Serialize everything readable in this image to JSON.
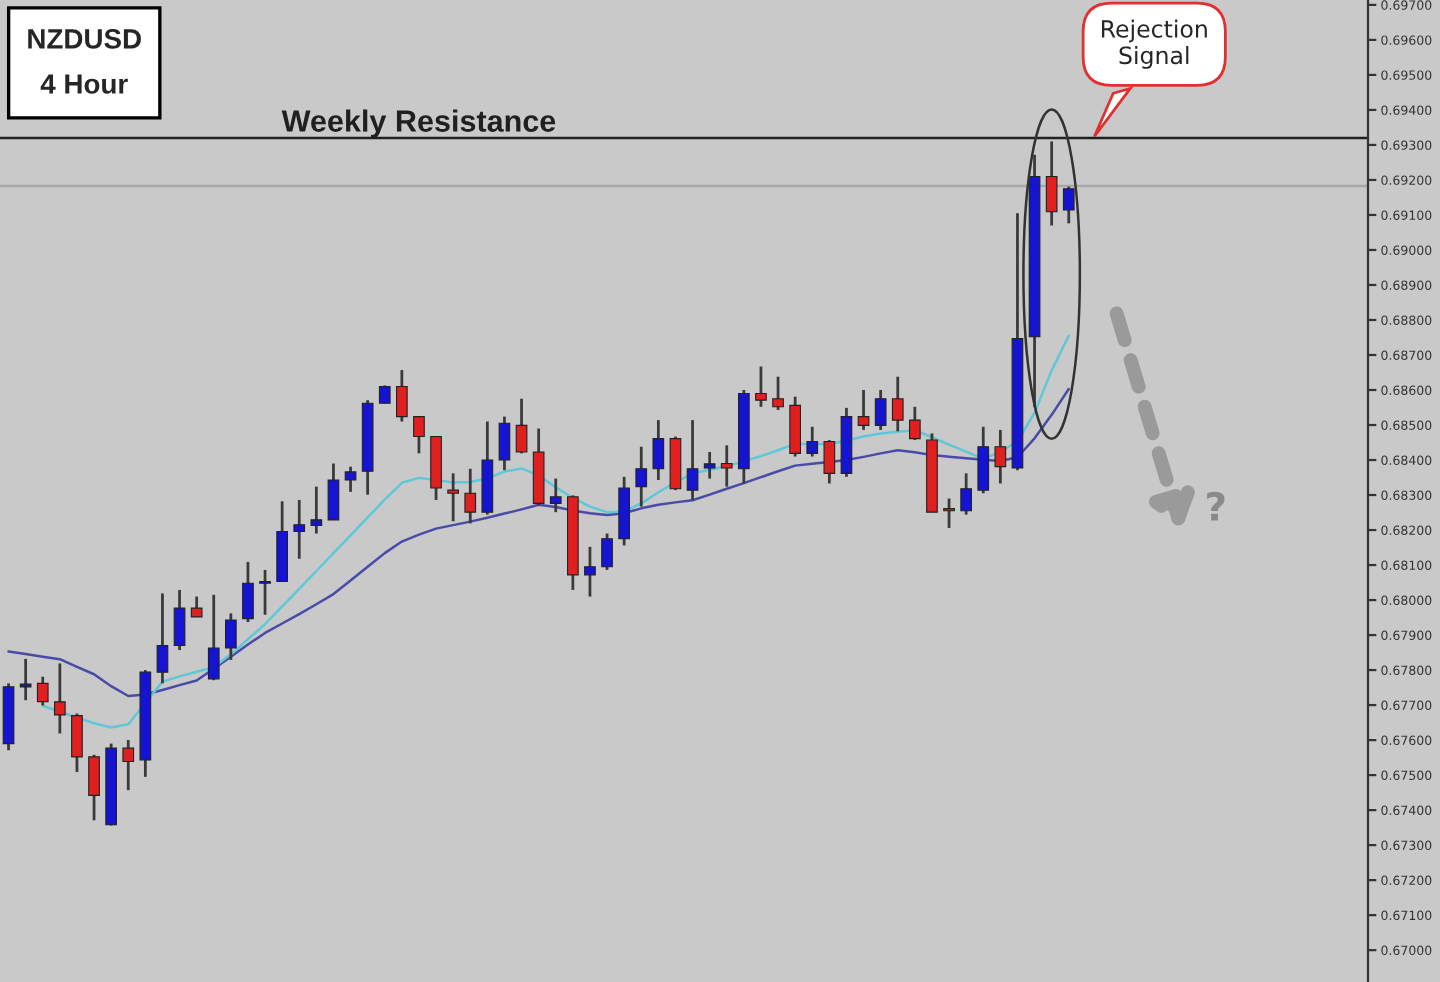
{
  "chart_data": {
    "type": "candlestick",
    "title": "NZDUSD",
    "subtitle": "4 Hour",
    "categories": [
      null,
      null,
      null,
      null,
      null,
      null,
      null,
      null,
      null,
      null,
      null,
      null,
      null,
      null,
      null,
      null,
      null,
      null,
      null,
      null,
      null,
      null,
      null,
      null,
      null,
      null,
      null,
      null,
      null,
      null,
      null,
      null,
      null,
      null,
      null,
      null,
      null,
      null,
      null,
      null,
      null,
      null,
      null,
      null,
      null,
      null,
      null,
      null,
      null,
      null,
      null,
      null,
      null,
      null,
      null,
      null,
      null,
      null,
      null,
      null,
      null,
      null,
      null,
      null,
      null,
      null,
      null,
      null,
      null,
      null,
      null,
      null,
      null,
      null,
      null,
      null,
      null,
      null,
      null,
      null
    ],
    "ohlc": [
      [
        0.6759,
        0.67762,
        0.67571,
        0.67752
      ],
      [
        0.67752,
        0.67832,
        0.67714,
        0.6776
      ],
      [
        0.67762,
        0.67781,
        0.67699,
        0.6771
      ],
      [
        0.67709,
        0.67819,
        0.67619,
        0.67672
      ],
      [
        0.6767,
        0.67676,
        0.67509,
        0.67552
      ],
      [
        0.67552,
        0.67558,
        0.67371,
        0.67442
      ],
      [
        0.67358,
        0.6759,
        0.67356,
        0.67577
      ],
      [
        0.67577,
        0.676,
        0.67457,
        0.67539
      ],
      [
        0.67543,
        0.678,
        0.67495,
        0.67794
      ],
      [
        0.67794,
        0.68019,
        0.67762,
        0.6787
      ],
      [
        0.6787,
        0.68029,
        0.67857,
        0.67977
      ],
      [
        0.67977,
        0.6801,
        0.67952,
        0.67952
      ],
      [
        0.67775,
        0.68015,
        0.67771,
        0.67863
      ],
      [
        0.67863,
        0.67962,
        0.67829,
        0.67943
      ],
      [
        0.67947,
        0.68109,
        0.67937,
        0.68048
      ],
      [
        0.68048,
        0.68086,
        0.67958,
        0.68053
      ],
      [
        0.68053,
        0.68282,
        0.68053,
        0.68196
      ],
      [
        0.68196,
        0.68286,
        0.68118,
        0.68215
      ],
      [
        0.68213,
        0.68324,
        0.6819,
        0.68229
      ],
      [
        0.68229,
        0.6839,
        0.68229,
        0.68343
      ],
      [
        0.68343,
        0.68381,
        0.68309,
        0.68366
      ],
      [
        0.68368,
        0.68571,
        0.68301,
        0.68562
      ],
      [
        0.68562,
        0.68613,
        0.68562,
        0.6861
      ],
      [
        0.6861,
        0.68657,
        0.6851,
        0.68524
      ],
      [
        0.68524,
        0.68524,
        0.68419,
        0.68467
      ],
      [
        0.68467,
        0.68467,
        0.68286,
        0.6832
      ],
      [
        0.68314,
        0.68362,
        0.68225,
        0.68305
      ],
      [
        0.68305,
        0.68375,
        0.68219,
        0.68251
      ],
      [
        0.68251,
        0.6851,
        0.68244,
        0.684
      ],
      [
        0.684,
        0.68524,
        0.68371,
        0.68505
      ],
      [
        0.68499,
        0.68575,
        0.68419,
        0.68423
      ],
      [
        0.68423,
        0.6849,
        0.6827,
        0.68276
      ],
      [
        0.68276,
        0.68347,
        0.68251,
        0.68295
      ],
      [
        0.68295,
        0.68299,
        0.68029,
        0.68072
      ],
      [
        0.68072,
        0.68152,
        0.6801,
        0.68095
      ],
      [
        0.68095,
        0.6819,
        0.68086,
        0.68175
      ],
      [
        0.68175,
        0.68352,
        0.68156,
        0.6832
      ],
      [
        0.68324,
        0.68438,
        0.68267,
        0.68375
      ],
      [
        0.68375,
        0.68514,
        0.68343,
        0.68461
      ],
      [
        0.68461,
        0.68467,
        0.68314,
        0.68318
      ],
      [
        0.68314,
        0.68514,
        0.68286,
        0.68375
      ],
      [
        0.68377,
        0.68423,
        0.68347,
        0.68389
      ],
      [
        0.6839,
        0.68442,
        0.68324,
        0.68377
      ],
      [
        0.68375,
        0.686,
        0.68333,
        0.6859
      ],
      [
        0.6859,
        0.68667,
        0.68552,
        0.68571
      ],
      [
        0.68575,
        0.68638,
        0.68543,
        0.68552
      ],
      [
        0.68556,
        0.68581,
        0.6841,
        0.68419
      ],
      [
        0.68419,
        0.68495,
        0.6841,
        0.68453
      ],
      [
        0.68453,
        0.68457,
        0.68333,
        0.68362
      ],
      [
        0.68362,
        0.68549,
        0.68352,
        0.68524
      ],
      [
        0.68524,
        0.686,
        0.68486,
        0.68499
      ],
      [
        0.68499,
        0.686,
        0.68486,
        0.68575
      ],
      [
        0.68575,
        0.68638,
        0.68482,
        0.68514
      ],
      [
        0.68514,
        0.68552,
        0.68457,
        0.68461
      ],
      [
        0.68457,
        0.68476,
        0.68251,
        0.68251
      ],
      [
        0.68261,
        0.6829,
        0.68206,
        0.68255
      ],
      [
        0.68255,
        0.68362,
        0.68244,
        0.68318
      ],
      [
        0.68314,
        0.68495,
        0.68305,
        0.68438
      ],
      [
        0.68438,
        0.68486,
        0.68333,
        0.68381
      ],
      [
        0.68377,
        0.69105,
        0.68371,
        0.68747
      ],
      [
        0.68752,
        0.69272,
        0.68552,
        0.6921
      ],
      [
        0.6921,
        0.6931,
        0.6907,
        0.69109
      ],
      [
        0.69114,
        0.69181,
        0.69076,
        0.69175
      ],
      null,
      null,
      null,
      null,
      null,
      null,
      null,
      null,
      null,
      null,
      null,
      null,
      null,
      null,
      null,
      null,
      null
    ],
    "colors": [
      "#1414d2",
      "#1414d2",
      "#e01f1f",
      "#e01f1f",
      "#e01f1f",
      "#e01f1f",
      "#1414d2",
      "#e01f1f",
      "#1414d2",
      "#1414d2",
      "#1414d2",
      "#e01f1f",
      "#1414d2",
      "#1414d2",
      "#1414d2",
      "#1414d2",
      "#1414d2",
      "#1414d2",
      "#1414d2",
      "#1414d2",
      "#1414d2",
      "#1414d2",
      "#1414d2",
      "#e01f1f",
      "#e01f1f",
      "#e01f1f",
      "#e01f1f",
      "#e01f1f",
      "#1414d2",
      "#1414d2",
      "#e01f1f",
      "#e01f1f",
      "#1414d2",
      "#e01f1f",
      "#1414d2",
      "#1414d2",
      "#1414d2",
      "#1414d2",
      "#1414d2",
      "#e01f1f",
      "#1414d2",
      "#1414d2",
      "#e01f1f",
      "#1414d2",
      "#e01f1f",
      "#e01f1f",
      "#e01f1f",
      "#1414d2",
      "#e01f1f",
      "#1414d2",
      "#e01f1f",
      "#1414d2",
      "#e01f1f",
      "#e01f1f",
      "#e01f1f",
      "#e01f1f",
      "#1414d2",
      "#1414d2",
      "#e01f1f",
      "#1414d2",
      "#1414d2",
      "#e01f1f",
      "#1414d2",
      null,
      null,
      null,
      null,
      null,
      null,
      null,
      null,
      null,
      null,
      null,
      null,
      null,
      null,
      null,
      null,
      null
    ],
    "series": [
      {
        "type": "line",
        "color": "#4a4aa8",
        "values": [
          0.67853,
          0.67846,
          0.67838,
          0.67831,
          0.67809,
          0.67788,
          0.67754,
          0.67726,
          0.6773,
          0.67743,
          0.67757,
          0.6777,
          0.67804,
          0.67838,
          0.67873,
          0.67906,
          0.67933,
          0.6796,
          0.67988,
          0.68017,
          0.68056,
          0.68095,
          0.68134,
          0.68167,
          0.68187,
          0.68204,
          0.68214,
          0.68224,
          0.68235,
          0.68247,
          0.68259,
          0.68272,
          0.68266,
          0.68256,
          0.68248,
          0.68243,
          0.68248,
          0.68262,
          0.68272,
          0.68279,
          0.68285,
          0.68301,
          0.68318,
          0.68334,
          0.68351,
          0.68368,
          0.68384,
          0.68389,
          0.68394,
          0.684,
          0.68409,
          0.68419,
          0.68428,
          0.68422,
          0.68414,
          0.68409,
          0.68405,
          0.68401,
          0.68397,
          0.68408,
          0.68462,
          0.68529,
          0.68603,
          null,
          null,
          null,
          null,
          null,
          null,
          null,
          null,
          null,
          null,
          null,
          null,
          null,
          null,
          null,
          null,
          null
        ]
      },
      {
        "type": "line",
        "color": "#5fc8d8",
        "values": [
          null,
          null,
          0.67698,
          0.67681,
          0.67664,
          0.67648,
          0.67636,
          0.67645,
          0.67706,
          0.67767,
          0.67782,
          0.67795,
          0.67808,
          0.67845,
          0.67888,
          0.67931,
          0.67982,
          0.68032,
          0.68083,
          0.68134,
          0.68185,
          0.68236,
          0.68287,
          0.68335,
          0.68349,
          0.68343,
          0.68336,
          0.68337,
          0.68348,
          0.68367,
          0.68376,
          0.68356,
          0.68322,
          0.68292,
          0.68267,
          0.68251,
          0.68253,
          0.68276,
          0.68308,
          0.68336,
          0.68362,
          0.68372,
          0.68382,
          0.68396,
          0.68411,
          0.68428,
          0.68446,
          0.68446,
          0.68446,
          0.68455,
          0.68467,
          0.68476,
          0.68481,
          0.68485,
          0.68465,
          0.68444,
          0.68424,
          0.68403,
          0.68423,
          0.68453,
          0.68535,
          0.68656,
          0.68755,
          null,
          null,
          null,
          null,
          null,
          null,
          null,
          null,
          null,
          null,
          null,
          null,
          null,
          null,
          null,
          null,
          null
        ]
      }
    ],
    "ylim": [
      0.66909,
      0.69714
    ],
    "yticks": [
      {
        "value": 0.67,
        "label": "0.67000"
      },
      {
        "value": 0.671,
        "label": "0.67100"
      },
      {
        "value": 0.672,
        "label": "0.67200"
      },
      {
        "value": 0.673,
        "label": "0.67300"
      },
      {
        "value": 0.674,
        "label": "0.67400"
      },
      {
        "value": 0.675,
        "label": "0.67500"
      },
      {
        "value": 0.676,
        "label": "0.67600"
      },
      {
        "value": 0.677,
        "label": "0.67700"
      },
      {
        "value": 0.678,
        "label": "0.67800"
      },
      {
        "value": 0.679,
        "label": "0.67900"
      },
      {
        "value": 0.68,
        "label": "0.68000"
      },
      {
        "value": 0.681,
        "label": "0.68100"
      },
      {
        "value": 0.682,
        "label": "0.68200"
      },
      {
        "value": 0.683,
        "label": "0.68300"
      },
      {
        "value": 0.684,
        "label": "0.68400"
      },
      {
        "value": 0.685,
        "label": "0.68500"
      },
      {
        "value": 0.686,
        "label": "0.68600"
      },
      {
        "value": 0.687,
        "label": "0.68700"
      },
      {
        "value": 0.688,
        "label": "0.68800"
      },
      {
        "value": 0.689,
        "label": "0.68900"
      },
      {
        "value": 0.69,
        "label": "0.69000"
      },
      {
        "value": 0.691,
        "label": "0.69100"
      },
      {
        "value": 0.692,
        "label": "0.69200"
      },
      {
        "value": 0.693,
        "label": "0.69300"
      },
      {
        "value": 0.694,
        "label": "0.69400"
      },
      {
        "value": 0.695,
        "label": "0.69500"
      },
      {
        "value": 0.696,
        "label": "0.69600"
      },
      {
        "value": 0.697,
        "label": "0.69700"
      }
    ],
    "ref_lines": [
      {
        "axis": "y",
        "value": 0.6932,
        "label": "Weekly Resistance",
        "color": "#202020"
      },
      {
        "axis": "y",
        "value": 0.69183,
        "color": "#a8a8a8"
      }
    ],
    "annotations": [
      "Rejection\nSignal",
      "?"
    ],
    "tick_labels": "y",
    "legend": false
  }
}
